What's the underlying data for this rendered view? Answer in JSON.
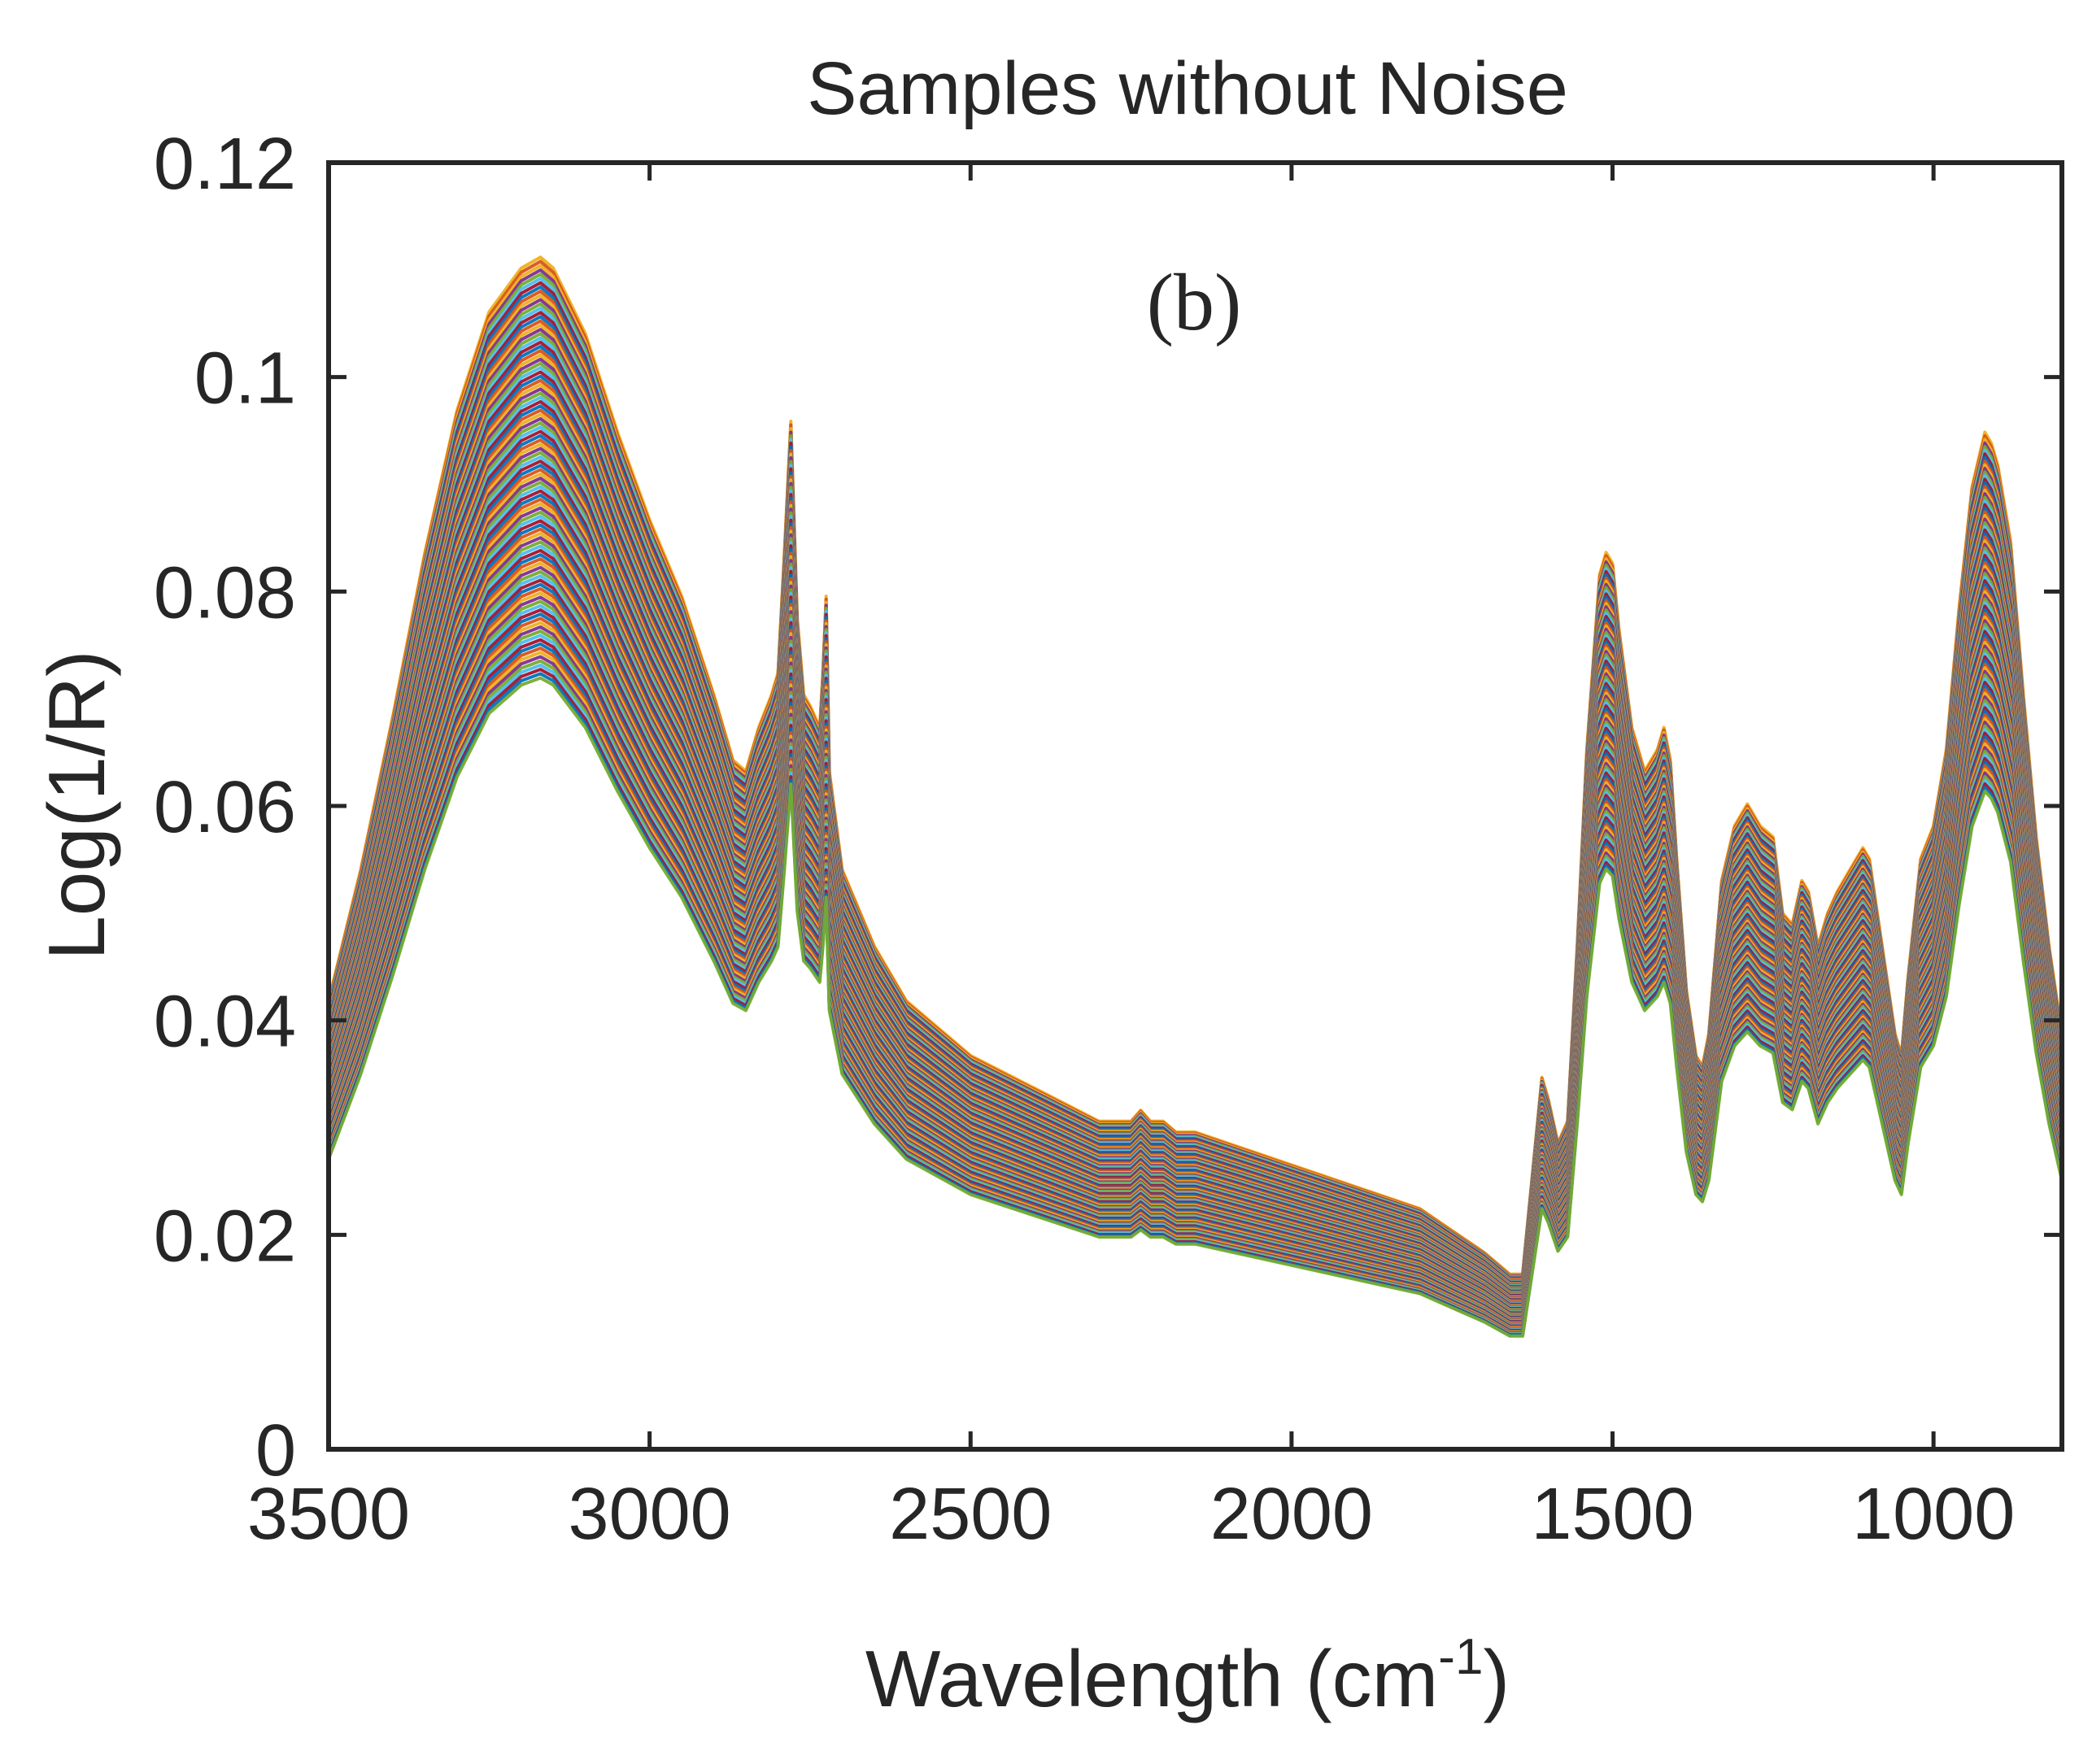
{
  "chart_data": {
    "type": "line",
    "title": "Samples without Noise",
    "panel_label": "(b)",
    "xlabel": {
      "text": "Wavelength (cm",
      "superscript": "-1",
      "suffix": ")"
    },
    "ylabel": "Log(1/R)",
    "xlim": [
      3500,
      800
    ],
    "x_reversed": true,
    "ylim": [
      0,
      0.12
    ],
    "grid": false,
    "legend": "none",
    "x_tick_labels": [
      "3500",
      "3000",
      "2500",
      "2000",
      "1500",
      "1000"
    ],
    "x_ticks": [
      3500,
      3000,
      2500,
      2000,
      1500,
      1000
    ],
    "y_tick_labels": [
      "0",
      "0.02",
      "0.04",
      "0.06",
      "0.08",
      "0.1",
      "0.12"
    ],
    "y_ticks": [
      0,
      0.02,
      0.04,
      0.06,
      0.08,
      0.1,
      0.12
    ],
    "sample_count": 100,
    "scale_range": [
      0.66,
      1.02
    ],
    "colors": [
      "#0072BD",
      "#D95319",
      "#EDB120",
      "#7E2F8E",
      "#77AC30",
      "#4DBEEE",
      "#A2142F"
    ],
    "upper_envelope_color": "#EDB120",
    "lower_envelope_color": "#77AC30",
    "reference_spectrum": {
      "x": [
        3500,
        3450,
        3400,
        3350,
        3300,
        3250,
        3200,
        3170,
        3150,
        3100,
        3050,
        3000,
        2950,
        2900,
        2870,
        2850,
        2830,
        2810,
        2800,
        2790,
        2780,
        2770,
        2760,
        2750,
        2735,
        2730,
        2725,
        2720,
        2700,
        2650,
        2600,
        2500,
        2400,
        2300,
        2250,
        2235,
        2220,
        2200,
        2180,
        2150,
        2100,
        2050,
        2000,
        1950,
        1900,
        1850,
        1800,
        1750,
        1700,
        1660,
        1640,
        1620,
        1610,
        1600,
        1585,
        1570,
        1555,
        1540,
        1520,
        1510,
        1500,
        1490,
        1470,
        1450,
        1430,
        1420,
        1410,
        1400,
        1385,
        1370,
        1360,
        1350,
        1330,
        1310,
        1290,
        1270,
        1250,
        1235,
        1220,
        1205,
        1195,
        1180,
        1165,
        1150,
        1130,
        1110,
        1100,
        1080,
        1060,
        1050,
        1040,
        1020,
        1000,
        980,
        960,
        940,
        920,
        910,
        900,
        880,
        860,
        840,
        820,
        800
      ],
      "y": [
        0.041,
        0.053,
        0.067,
        0.082,
        0.095,
        0.104,
        0.108,
        0.109,
        0.108,
        0.102,
        0.093,
        0.085,
        0.078,
        0.069,
        0.063,
        0.062,
        0.066,
        0.069,
        0.071,
        0.082,
        0.094,
        0.076,
        0.069,
        0.068,
        0.066,
        0.071,
        0.078,
        0.062,
        0.053,
        0.046,
        0.041,
        0.036,
        0.033,
        0.03,
        0.03,
        0.031,
        0.03,
        0.03,
        0.029,
        0.029,
        0.028,
        0.027,
        0.026,
        0.025,
        0.024,
        0.023,
        0.022,
        0.02,
        0.018,
        0.016,
        0.016,
        0.028,
        0.034,
        0.032,
        0.028,
        0.03,
        0.046,
        0.064,
        0.08,
        0.082,
        0.081,
        0.075,
        0.066,
        0.062,
        0.064,
        0.066,
        0.063,
        0.054,
        0.042,
        0.036,
        0.035,
        0.038,
        0.052,
        0.057,
        0.059,
        0.057,
        0.056,
        0.049,
        0.048,
        0.052,
        0.051,
        0.046,
        0.049,
        0.051,
        0.053,
        0.055,
        0.054,
        0.046,
        0.038,
        0.036,
        0.043,
        0.054,
        0.057,
        0.064,
        0.077,
        0.088,
        0.093,
        0.092,
        0.09,
        0.083,
        0.069,
        0.056,
        0.046,
        0.038
      ]
    }
  }
}
